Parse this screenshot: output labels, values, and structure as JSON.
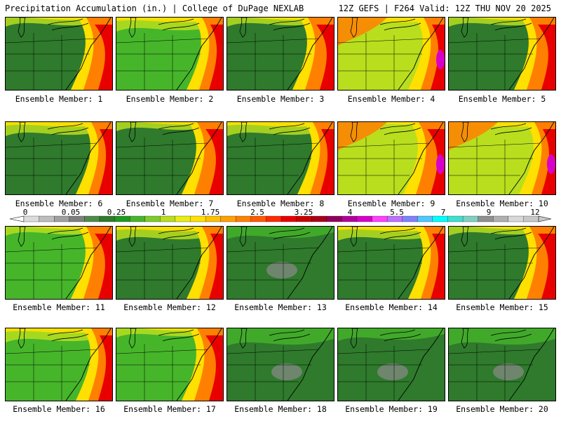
{
  "header": {
    "left": "Precipitation Accumulation (in.) | College of DuPage NEXLAB",
    "right": "12Z GEFS | F264 Valid: 12Z THU NOV 20 2025"
  },
  "caption_prefix": "Ensemble Member:",
  "members": [
    {
      "label": "Ensemble Member: 1",
      "shade": "mixed"
    },
    {
      "label": "Ensemble Member: 2",
      "shade": "wet"
    },
    {
      "label": "Ensemble Member: 3",
      "shade": "mixed"
    },
    {
      "label": "Ensemble Member: 4",
      "shade": "very-wet"
    },
    {
      "label": "Ensemble Member: 5",
      "shade": "mixed"
    },
    {
      "label": "Ensemble Member: 6",
      "shade": "mixed"
    },
    {
      "label": "Ensemble Member: 7",
      "shade": "mixed"
    },
    {
      "label": "Ensemble Member: 8",
      "shade": "mixed"
    },
    {
      "label": "Ensemble Member: 9",
      "shade": "very-wet"
    },
    {
      "label": "Ensemble Member: 10",
      "shade": "very-wet"
    },
    {
      "label": "Ensemble Member: 11",
      "shade": "wet"
    },
    {
      "label": "Ensemble Member: 12",
      "shade": "mixed"
    },
    {
      "label": "Ensemble Member: 13",
      "shade": "dry"
    },
    {
      "label": "Ensemble Member: 14",
      "shade": "mixed"
    },
    {
      "label": "Ensemble Member: 15",
      "shade": "mixed"
    },
    {
      "label": "Ensemble Member: 16",
      "shade": "wet"
    },
    {
      "label": "Ensemble Member: 17",
      "shade": "wet"
    },
    {
      "label": "Ensemble Member: 18",
      "shade": "dry"
    },
    {
      "label": "Ensemble Member: 19",
      "shade": "dry"
    },
    {
      "label": "Ensemble Member: 20",
      "shade": "dry"
    }
  ],
  "colorbar": {
    "labels": [
      "0",
      "0.05",
      "0.25",
      "1",
      "1.75",
      "2.5",
      "3.25",
      "4",
      "5.5",
      "7",
      "9",
      "12"
    ],
    "colors": [
      "#dcdcdc",
      "#bdbdbd",
      "#a0a0a0",
      "#7f7f7f",
      "#4e8b4a",
      "#2f7a2c",
      "#1f9a1f",
      "#46b52a",
      "#7fcb2a",
      "#b8de1e",
      "#e8ee10",
      "#ffe000",
      "#ffc000",
      "#ffa000",
      "#ff8000",
      "#ff5a00",
      "#ff2a00",
      "#e80000",
      "#c80000",
      "#a80018",
      "#90005a",
      "#b0009a",
      "#d800c8",
      "#ff40ff",
      "#c070ff",
      "#8080ff",
      "#50c8ff",
      "#00ffff",
      "#40e0d0",
      "#80d0c0",
      "#909090",
      "#b0b0b0",
      "#d8d8d8",
      "#c8c8c8"
    ]
  },
  "colors": {
    "dry": "#2f7a2c",
    "green": "#46b52a",
    "lime": "#b8de1e",
    "yellow": "#ffe000",
    "orange": "#ff8000",
    "red": "#e80000",
    "magenta": "#d800c8",
    "gray": "#8a8a8a",
    "border": "#000000"
  }
}
